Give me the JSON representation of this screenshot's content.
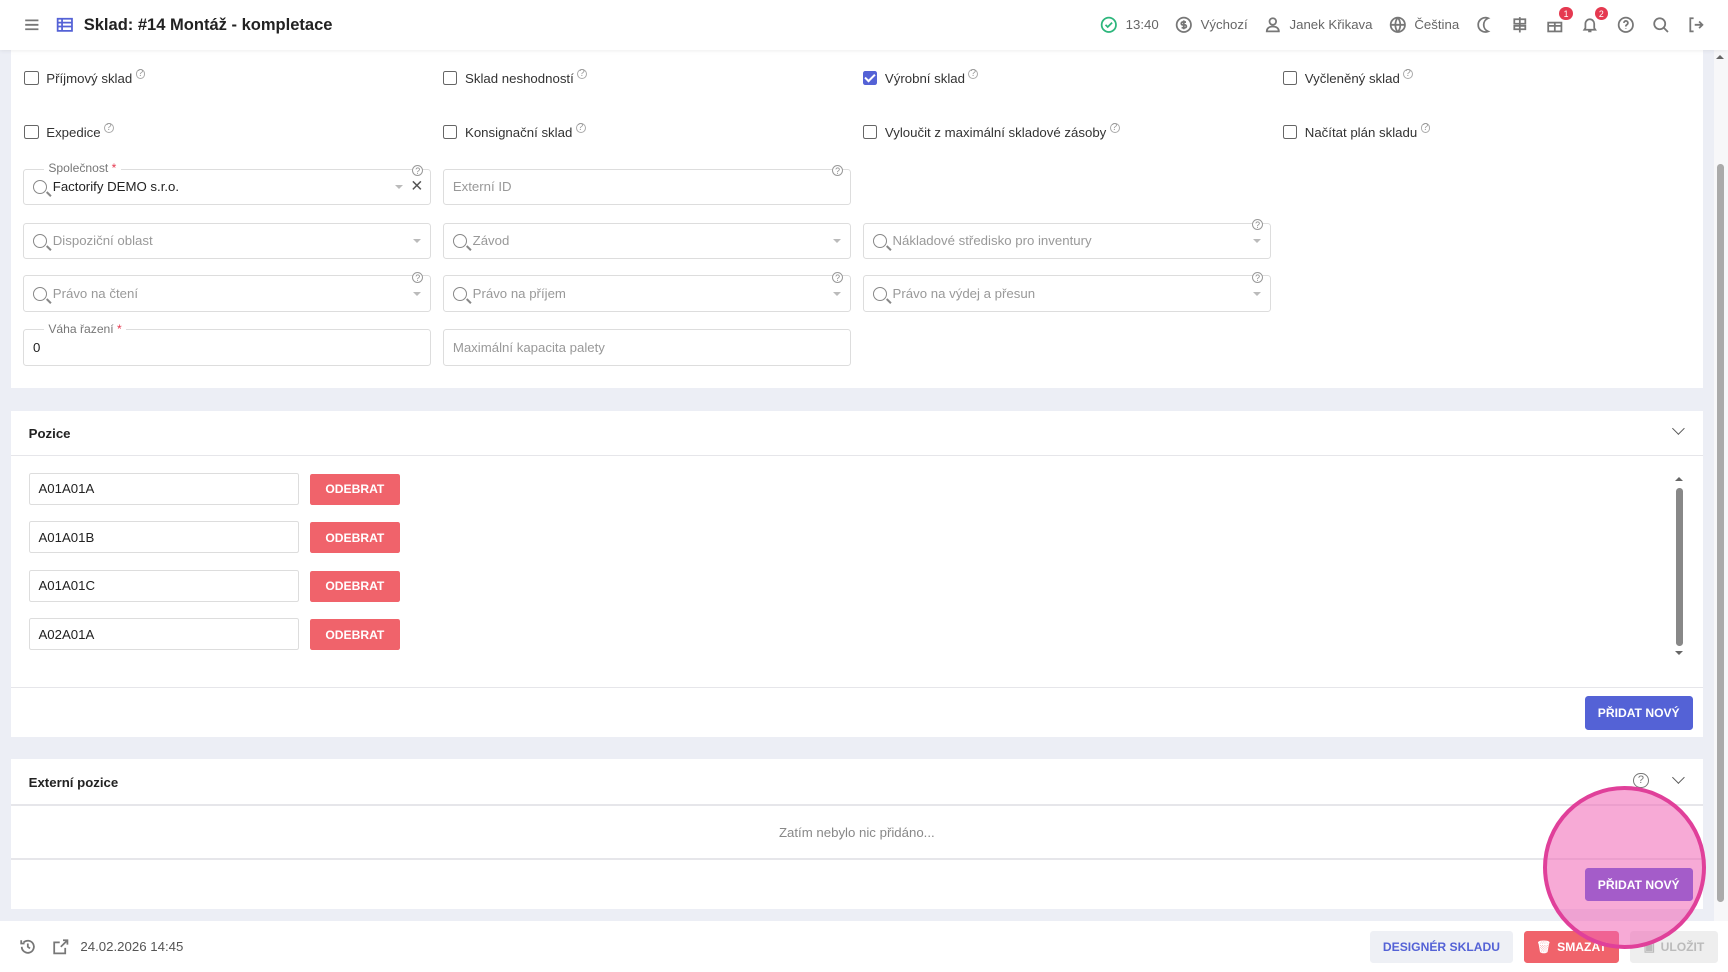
{
  "header": {
    "title": "Sklad: #14 Montáž - kompletace",
    "time": "13:40",
    "currency": "Výchozí",
    "user": "Janek Křikava",
    "language": "Čeština",
    "gift_badge": "1",
    "notif_badge": "2"
  },
  "flags": [
    {
      "label": "Příjmový sklad",
      "checked": false
    },
    {
      "label": "Sklad neshodností",
      "checked": false
    },
    {
      "label": "Výrobní sklad",
      "checked": true
    },
    {
      "label": "Vyčleněný sklad",
      "checked": false
    },
    {
      "label": "Expedice",
      "checked": false
    },
    {
      "label": "Konsignační sklad",
      "checked": false
    },
    {
      "label": "Vyloučit z maximální skladové zásoby",
      "checked": false
    },
    {
      "label": "Načítat plán skladu",
      "checked": false
    }
  ],
  "fields": {
    "company": {
      "label": "Společnost",
      "value": "Factorify DEMO s.r.o."
    },
    "external_id": {
      "placeholder": "Externí ID"
    },
    "disposition_area": {
      "placeholder": "Dispoziční oblast"
    },
    "plant": {
      "placeholder": "Závod"
    },
    "cost_center": {
      "placeholder": "Nákladové středisko pro inventury"
    },
    "read_right": {
      "placeholder": "Právo na čtení"
    },
    "receive_right": {
      "placeholder": "Právo na příjem"
    },
    "issue_right": {
      "placeholder": "Právo na výdej a přesun"
    },
    "sort_weight": {
      "label": "Váha řazení",
      "value": "0"
    },
    "pallet_capacity": {
      "placeholder": "Maximální kapacita palety"
    }
  },
  "positions": {
    "title": "Pozice",
    "items": [
      "A01A01A",
      "A01A01B",
      "A01A01C",
      "A02A01A"
    ],
    "remove_label": "ODEBRAT",
    "add_label": "PŘIDAT NOVÝ"
  },
  "external_positions": {
    "title": "Externí pozice",
    "empty_text": "Zatím nebylo nic přidáno...",
    "add_label": "PŘIDAT NOVÝ"
  },
  "footer": {
    "date": "24.02.2026 14:45",
    "designer_label": "DESIGNÉR SKLADU",
    "delete_label": "SMAZAT",
    "save_label": "ULOŽIT"
  },
  "colors": {
    "accent": "#5462d6",
    "danger": "#f0636b",
    "success": "#2db67c"
  }
}
